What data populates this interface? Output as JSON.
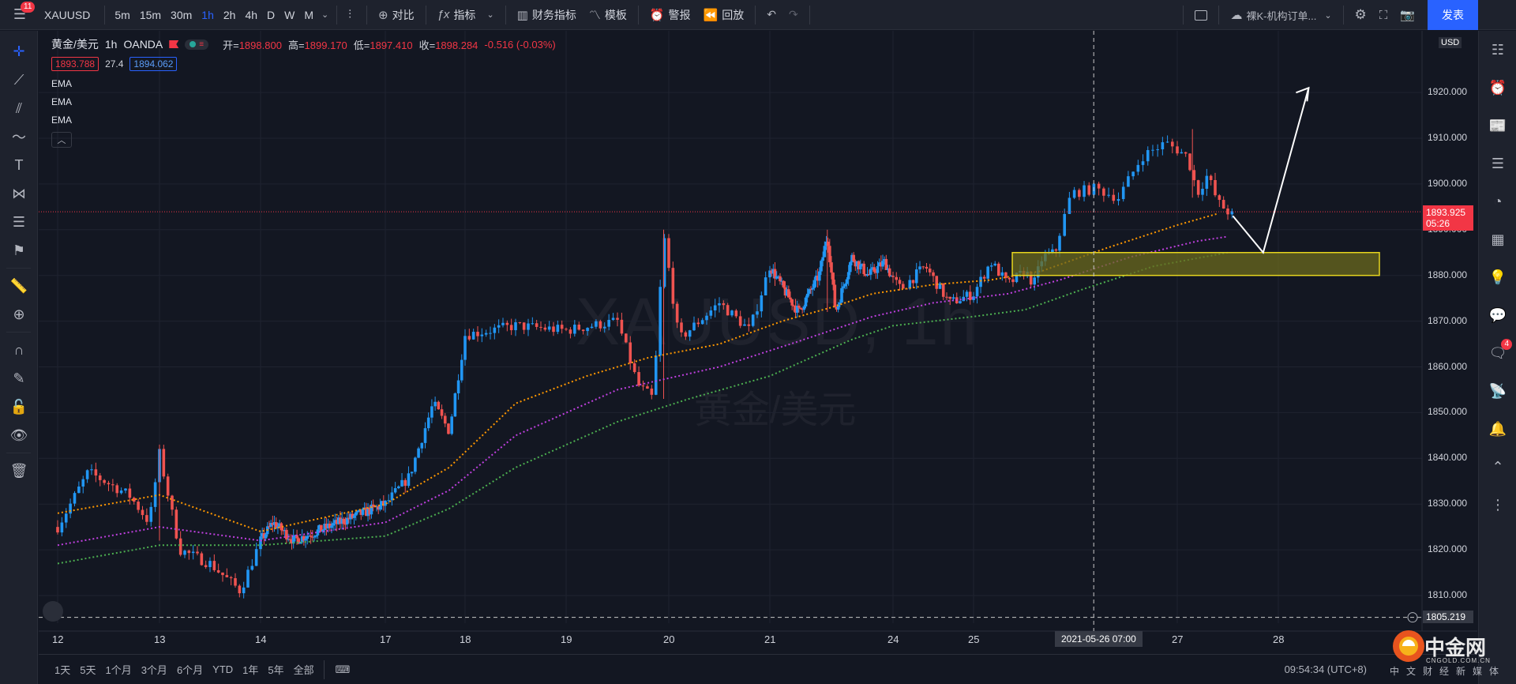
{
  "topbar": {
    "menu_badge": "11",
    "symbol": "XAUUSD",
    "intervals": [
      "5m",
      "15m",
      "30m",
      "1h",
      "2h",
      "4h",
      "D",
      "W",
      "M"
    ],
    "active_interval": "1h",
    "compare_label": "对比",
    "indicators_label": "指标",
    "financials_label": "财务指标",
    "templates_label": "模板",
    "alert_label": "警报",
    "replay_label": "回放",
    "layout_name": "裸K-机构订单...",
    "publish_label": "发表"
  },
  "legend": {
    "title": "黄金/美元",
    "interval": "1h",
    "source": "OANDA",
    "open_key": "开=",
    "open": "1898.800",
    "high_key": "高=",
    "high": "1899.170",
    "low_key": "低=",
    "low": "1897.410",
    "close_key": "收=",
    "close": "1898.284",
    "change": "-0.516 (-0.03%)",
    "bid": "1893.788",
    "spread": "27.4",
    "ask": "1894.062",
    "indicators": [
      "EMA",
      "EMA",
      "EMA"
    ]
  },
  "watermark": {
    "symbol": "XAUUSD, 1h",
    "name": "黄金/美元"
  },
  "price_axis": {
    "currency": "USD",
    "current_price": "1893.925",
    "countdown": "05:26",
    "crosshair_price": "1805.219"
  },
  "time_axis": {
    "crosshair_time": "2021-05-26   07:00"
  },
  "bottombar": {
    "ranges": [
      "1天",
      "5天",
      "1个月",
      "3个月",
      "6个月",
      "YTD",
      "1年",
      "5年",
      "全部"
    ],
    "clock": "09:54:34 (UTC+8)",
    "brand_name": "中金网",
    "brand_url": "CNGOLD.COM.CN",
    "brand_sub": "中文财经新媒体"
  },
  "right_badge": "4",
  "colors": {
    "up": "#2196f3",
    "down": "#ef5350",
    "ema_fast": "#ff9800",
    "ema_mid": "#c040e0",
    "ema_slow": "#4caf50",
    "zone_fill": "#6b6a1e",
    "zone_border": "#e6d51e",
    "accent": "#2962ff"
  },
  "chart_data": {
    "type": "candlestick",
    "symbol": "XAUUSD",
    "interval": "1h",
    "ylim": [
      1805,
      1932
    ],
    "y_ticks": [
      1810,
      1820,
      1830,
      1840,
      1850,
      1860,
      1870,
      1880,
      1890,
      1900,
      1910,
      1920
    ],
    "x_ticks": [
      "12",
      "13",
      "14",
      "17",
      "18",
      "19",
      "20",
      "21",
      "24",
      "25",
      "27",
      "28"
    ],
    "ohlc_path": [
      [
        12,
        1825
      ],
      [
        12.3,
        1837
      ],
      [
        12.7,
        1832
      ],
      [
        12.9,
        1826
      ],
      [
        13.0,
        1841
      ],
      [
        13.2,
        1820
      ],
      [
        13.5,
        1817
      ],
      [
        13.8,
        1811
      ],
      [
        14.0,
        1822
      ],
      [
        14.3,
        1826
      ],
      [
        14.8,
        1822
      ],
      [
        17.0,
        1830
      ],
      [
        17.3,
        1836
      ],
      [
        17.6,
        1852
      ],
      [
        17.8,
        1846
      ],
      [
        18.0,
        1867
      ],
      [
        18.5,
        1869
      ],
      [
        19.0,
        1868
      ],
      [
        19.5,
        1870
      ],
      [
        19.7,
        1856
      ],
      [
        19.85,
        1853
      ],
      [
        19.95,
        1889
      ],
      [
        20.1,
        1866
      ],
      [
        20.5,
        1874
      ],
      [
        20.8,
        1868
      ],
      [
        21.0,
        1882
      ],
      [
        21.4,
        1876
      ],
      [
        21.7,
        1872
      ],
      [
        22.2,
        1880
      ],
      [
        22.4,
        1889
      ],
      [
        22.6,
        1872
      ],
      [
        23.0,
        1884
      ],
      [
        23.4,
        1880
      ],
      [
        23.8,
        1883
      ],
      [
        24.1,
        1877
      ],
      [
        24.4,
        1882
      ],
      [
        24.7,
        1874
      ],
      [
        25.0,
        1876
      ],
      [
        25.2,
        1883
      ],
      [
        25.4,
        1878
      ],
      [
        25.6,
        1881
      ],
      [
        25.7,
        1878
      ],
      [
        25.8,
        1884
      ],
      [
        25.95,
        1885
      ],
      [
        26.1,
        1898
      ],
      [
        26.3,
        1899
      ],
      [
        26.5,
        1897
      ],
      [
        26.7,
        1906
      ],
      [
        26.9,
        1909
      ],
      [
        27.1,
        1906
      ],
      [
        27.2,
        1898
      ],
      [
        27.3,
        1902
      ],
      [
        27.4,
        1896
      ],
      [
        27.55,
        1893
      ]
    ],
    "ema_fast": [
      [
        12,
        1828
      ],
      [
        13,
        1832
      ],
      [
        14,
        1824
      ],
      [
        17,
        1830
      ],
      [
        17.8,
        1838
      ],
      [
        18.5,
        1852
      ],
      [
        19.2,
        1858
      ],
      [
        19.8,
        1862
      ],
      [
        20.5,
        1865
      ],
      [
        21.3,
        1870
      ],
      [
        22.5,
        1873
      ],
      [
        23.5,
        1876
      ],
      [
        24.5,
        1878
      ],
      [
        25.2,
        1879
      ],
      [
        25.8,
        1881
      ],
      [
        26.4,
        1886
      ],
      [
        27.0,
        1891
      ],
      [
        27.4,
        1893.5
      ]
    ],
    "ema_mid": [
      [
        12,
        1821
      ],
      [
        13,
        1825
      ],
      [
        14,
        1822
      ],
      [
        17,
        1826
      ],
      [
        17.8,
        1833
      ],
      [
        18.5,
        1845
      ],
      [
        19.5,
        1855
      ],
      [
        20.5,
        1860
      ],
      [
        21.5,
        1865
      ],
      [
        22.5,
        1868
      ],
      [
        23.5,
        1871
      ],
      [
        24.5,
        1874
      ],
      [
        25.4,
        1876
      ],
      [
        26.0,
        1879
      ],
      [
        26.6,
        1884
      ],
      [
        27.2,
        1887.5
      ],
      [
        27.5,
        1888.5
      ]
    ],
    "ema_slow": [
      [
        12,
        1817
      ],
      [
        13,
        1821
      ],
      [
        14,
        1821
      ],
      [
        17,
        1823
      ],
      [
        17.8,
        1829
      ],
      [
        18.5,
        1838
      ],
      [
        19.5,
        1848
      ],
      [
        20.2,
        1853
      ],
      [
        21.0,
        1858
      ],
      [
        22.0,
        1862
      ],
      [
        23.0,
        1866
      ],
      [
        24.0,
        1869
      ],
      [
        25.0,
        1871
      ],
      [
        25.6,
        1872.5
      ],
      [
        26.2,
        1877
      ],
      [
        26.8,
        1882
      ],
      [
        27.5,
        1885
      ]
    ],
    "zone": {
      "x": [
        25.45,
        29.0
      ],
      "y": [
        1880,
        1885
      ]
    },
    "projection": [
      [
        27.55,
        1893
      ],
      [
        27.85,
        1885
      ],
      [
        28.3,
        1921
      ]
    ],
    "current_price_line": 1893.925,
    "crosshair": {
      "time": "2021-05-26 07:00",
      "price": 1805.219
    }
  }
}
